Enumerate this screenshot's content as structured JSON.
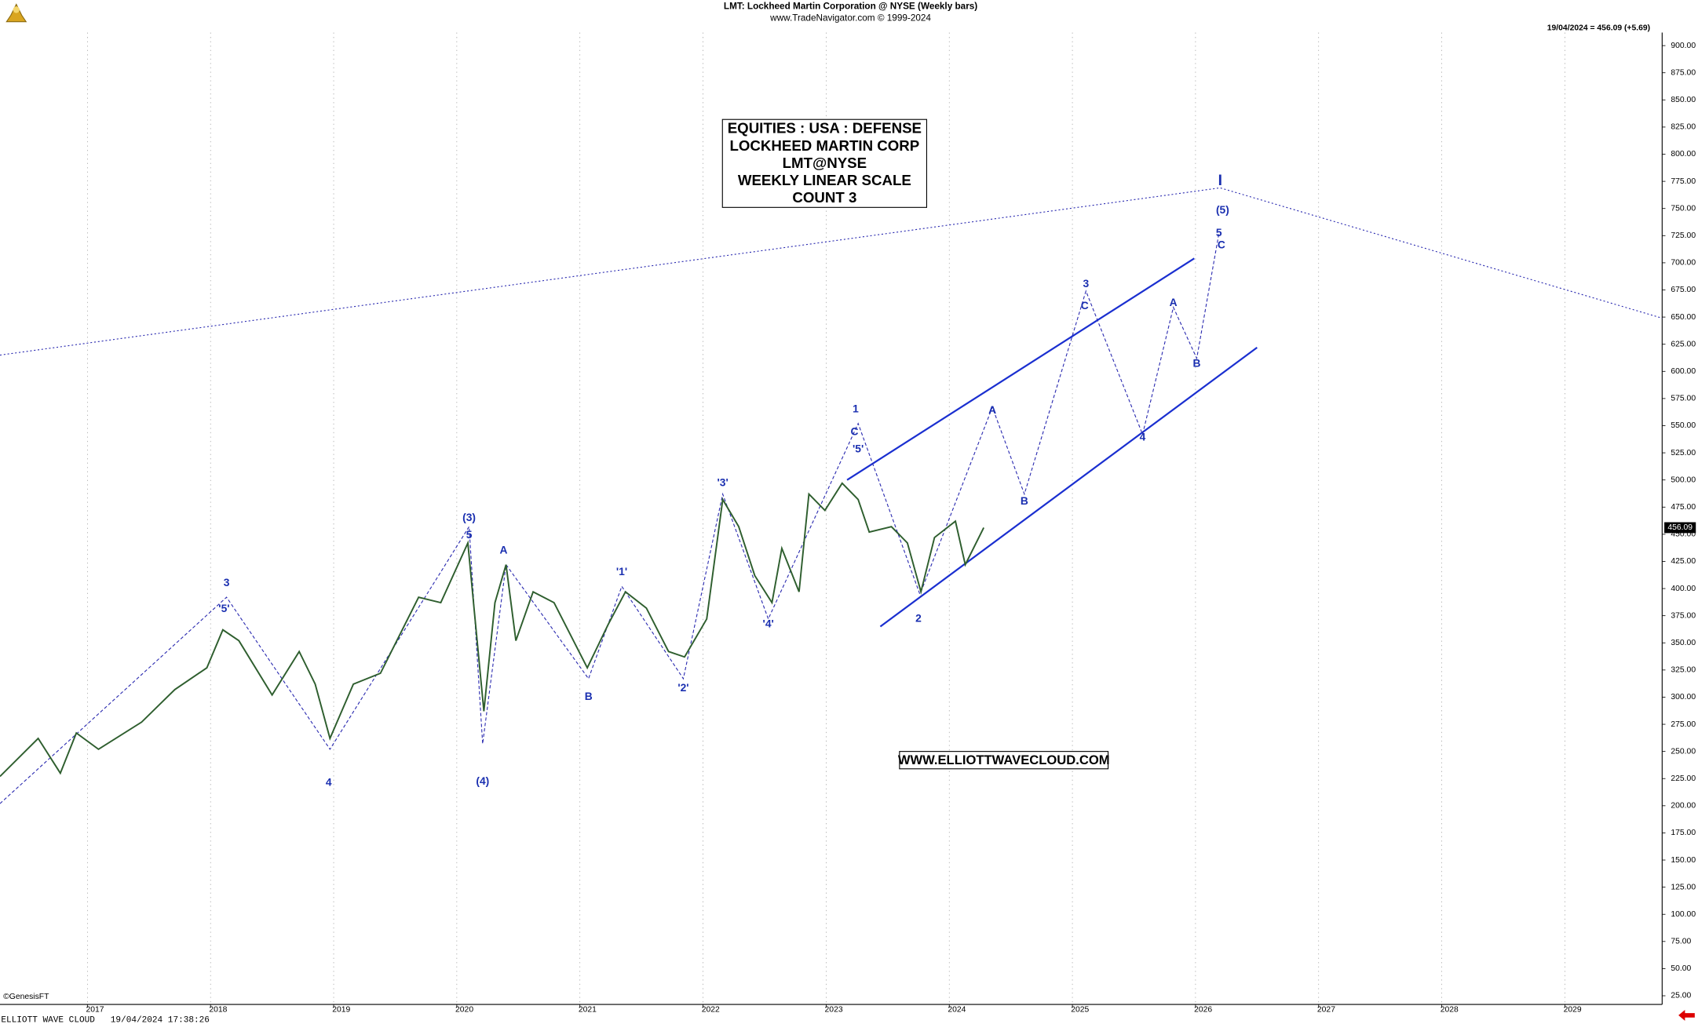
{
  "chart_data": {
    "type": "line",
    "title": "LMT:  Lockheed Martin Corporation @ NYSE  (Weekly bars)",
    "subtitle": "www.TradeNavigator.com © 1999-2024",
    "last_quote": "19/04/2024 = 456.09 (+5.69)",
    "last_label": "456.09",
    "info_box": [
      "EQUITIES : USA : DEFENSE",
      "LOCKHEED MARTIN CORP",
      "LMT@NYSE",
      "WEEKLY LINEAR SCALE",
      "COUNT 3"
    ],
    "website": "WWW.ELLIOTTWAVECLOUD.COM",
    "credit": "©GenesisFT",
    "footer": "ELLIOTT WAVE CLOUD   19/04/2024 17:38:26",
    "color": "#2e5e2e",
    "grid": "vertical",
    "xlim": [
      2016.29,
      2029.79
    ],
    "xticks": [
      2017,
      2018,
      2019,
      2020,
      2021,
      2022,
      2023,
      2024,
      2025,
      2026,
      2027,
      2028,
      2029
    ],
    "ylim": [
      17,
      912
    ],
    "yticks": [
      {
        "value": 25,
        "label": "25.00"
      },
      {
        "value": 50,
        "label": "50.00"
      },
      {
        "value": 75,
        "label": "75.00"
      },
      {
        "value": 100,
        "label": "100.00"
      },
      {
        "value": 125,
        "label": "125.00"
      },
      {
        "value": 150,
        "label": "150.00"
      },
      {
        "value": 175,
        "label": "175.00"
      },
      {
        "value": 200,
        "label": "200.00"
      },
      {
        "value": 225,
        "label": "225.00"
      },
      {
        "value": 250,
        "label": "250.00"
      },
      {
        "value": 275,
        "label": "275.00"
      },
      {
        "value": 300,
        "label": "300.00"
      },
      {
        "value": 325,
        "label": "325.00"
      },
      {
        "value": 350,
        "label": "350.00"
      },
      {
        "value": 375,
        "label": "375.00"
      },
      {
        "value": 400,
        "label": "400.00"
      },
      {
        "value": 425,
        "label": "425.00"
      },
      {
        "value": 450,
        "label": "450.00"
      },
      {
        "value": 475,
        "label": "475.00"
      },
      {
        "value": 500,
        "label": "500.00"
      },
      {
        "value": 525,
        "label": "525.00"
      },
      {
        "value": 550,
        "label": "550.00"
      },
      {
        "value": 575,
        "label": "575.00"
      },
      {
        "value": 600,
        "label": "600.00"
      },
      {
        "value": 625,
        "label": "625.00"
      },
      {
        "value": 650,
        "label": "650.00"
      },
      {
        "value": 675,
        "label": "675.00"
      },
      {
        "value": 700,
        "label": "700.00"
      },
      {
        "value": 725,
        "label": "725.00"
      },
      {
        "value": 750,
        "label": "750.00"
      },
      {
        "value": 775,
        "label": "775.00"
      },
      {
        "value": 800,
        "label": "800.00"
      },
      {
        "value": 825,
        "label": "825.00"
      },
      {
        "value": 850,
        "label": "850.00"
      },
      {
        "value": 875,
        "label": "875.00"
      },
      {
        "value": 900,
        "label": "900.00"
      }
    ],
    "x": [
      2016.29,
      2016.6,
      2016.78,
      2016.91,
      2017.09,
      2017.44,
      2017.71,
      2017.97,
      2018.1,
      2018.23,
      2018.5,
      2018.72,
      2018.85,
      2018.97,
      2019.16,
      2019.38,
      2019.69,
      2019.87,
      2020.09,
      2020.14,
      2020.22,
      2020.31,
      2020.4,
      2020.48,
      2020.62,
      2020.79,
      2021.06,
      2021.23,
      2021.37,
      2021.54,
      2021.72,
      2021.85,
      2022.03,
      2022.16,
      2022.29,
      2022.42,
      2022.56,
      2022.64,
      2022.78,
      2022.86,
      2022.99,
      2023.13,
      2023.26,
      2023.35,
      2023.53,
      2023.66,
      2023.77,
      2023.88,
      2024.05,
      2024.13,
      2024.28
    ],
    "values": [
      227,
      262,
      230,
      267,
      252,
      277,
      307,
      327,
      362,
      352,
      302,
      342,
      312,
      262,
      312,
      322,
      392,
      387,
      442,
      382,
      287,
      387,
      422,
      352,
      397,
      387,
      327,
      367,
      397,
      382,
      342,
      337,
      372,
      482,
      457,
      412,
      387,
      437,
      397,
      487,
      472,
      497,
      482,
      452,
      457,
      442,
      397,
      447,
      462,
      422,
      456.09
    ],
    "overlays": [
      {
        "style": "dotted",
        "color": "#2a2ab0",
        "x": [
          2016.29,
          2026.2,
          2029.79
        ],
        "y": [
          615,
          769,
          649
        ]
      },
      {
        "style": "solid",
        "color": "#1a2fd0",
        "x": [
          2023.17,
          2025.99
        ],
        "y": [
          500,
          704
        ]
      },
      {
        "style": "solid",
        "color": "#1a2fd0",
        "x": [
          2023.44,
          2026.5
        ],
        "y": [
          365,
          622
        ]
      },
      {
        "style": "dashed",
        "color": "#2a2ab0",
        "x": [
          2016.29,
          2018.13,
          2018.97,
          2020.1,
          2020.21,
          2020.4,
          2021.07,
          2021.34,
          2021.84,
          2022.16,
          2022.53,
          2023.26,
          2023.77
        ],
        "y": [
          202,
          392,
          252,
          457,
          257,
          422,
          317,
          402,
          317,
          487,
          372,
          552,
          392
        ]
      },
      {
        "style": "dashed",
        "color": "#2a2ab0",
        "x": [
          2023.77,
          2024.35,
          2024.61,
          2025.11,
          2025.57,
          2025.82,
          2026.01,
          2026.19
        ],
        "y": [
          397,
          567,
          487,
          674,
          542,
          659,
          612,
          727
        ]
      }
    ],
    "annotations": [
      {
        "text": "3",
        "x": 2018.13,
        "y": 405
      },
      {
        "text": "'5'",
        "x": 2018.11,
        "y": 381
      },
      {
        "text": "4",
        "x": 2018.96,
        "y": 221
      },
      {
        "text": "(3)",
        "x": 2020.1,
        "y": 465
      },
      {
        "text": "5",
        "x": 2020.1,
        "y": 449
      },
      {
        "text": "(4)",
        "x": 2020.21,
        "y": 222
      },
      {
        "text": "A",
        "x": 2020.38,
        "y": 435
      },
      {
        "text": "B",
        "x": 2021.07,
        "y": 300
      },
      {
        "text": "'1'",
        "x": 2021.34,
        "y": 415
      },
      {
        "text": "'2'",
        "x": 2021.84,
        "y": 308
      },
      {
        "text": "'3'",
        "x": 2022.16,
        "y": 497
      },
      {
        "text": "'4'",
        "x": 2022.53,
        "y": 367
      },
      {
        "text": "1",
        "x": 2023.24,
        "y": 565
      },
      {
        "text": "C",
        "x": 2023.23,
        "y": 544
      },
      {
        "text": "'5'",
        "x": 2023.26,
        "y": 528
      },
      {
        "text": "2",
        "x": 2023.75,
        "y": 372
      },
      {
        "text": "A",
        "x": 2024.35,
        "y": 564
      },
      {
        "text": "B",
        "x": 2024.61,
        "y": 480
      },
      {
        "text": "3",
        "x": 2025.11,
        "y": 680
      },
      {
        "text": "C",
        "x": 2025.1,
        "y": 660
      },
      {
        "text": "4",
        "x": 2025.57,
        "y": 539
      },
      {
        "text": "A",
        "x": 2025.82,
        "y": 663
      },
      {
        "text": "B",
        "x": 2026.01,
        "y": 607
      },
      {
        "text": "5",
        "x": 2026.19,
        "y": 727
      },
      {
        "text": "C",
        "x": 2026.21,
        "y": 716
      },
      {
        "text": "(5)",
        "x": 2026.22,
        "y": 748
      },
      {
        "text": "I",
        "x": 2026.2,
        "y": 775
      }
    ]
  }
}
